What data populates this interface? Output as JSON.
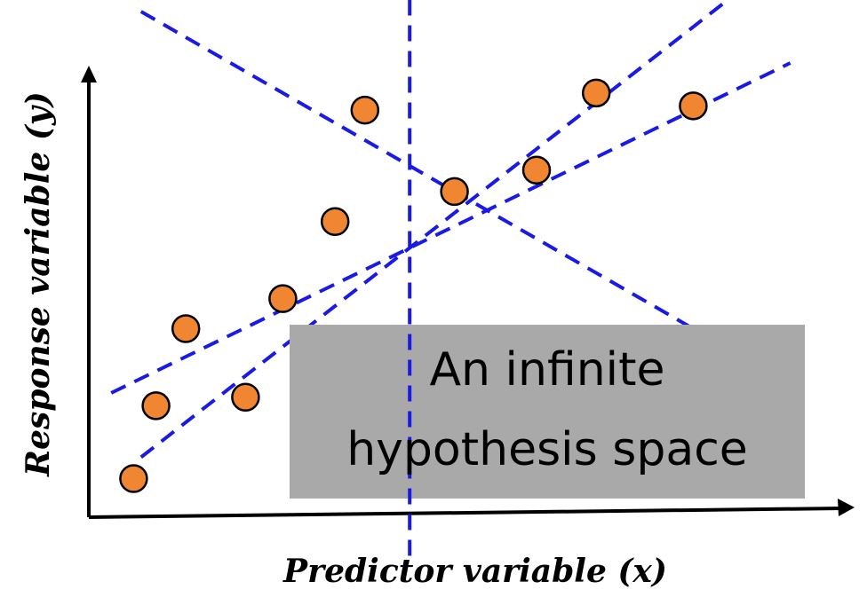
{
  "chart_data": {
    "type": "scatter",
    "title": "",
    "xlabel": "Predictor variable (x)",
    "ylabel": "Response variable (y)",
    "grid": false,
    "legend": "none",
    "xlim": [
      0,
      100
    ],
    "ylim": [
      0,
      100
    ],
    "points": [
      {
        "x": 6,
        "y": 9
      },
      {
        "x": 9,
        "y": 26
      },
      {
        "x": 13,
        "y": 44
      },
      {
        "x": 21,
        "y": 28
      },
      {
        "x": 26,
        "y": 51
      },
      {
        "x": 33,
        "y": 69
      },
      {
        "x": 37,
        "y": 95
      },
      {
        "x": 49,
        "y": 76
      },
      {
        "x": 60,
        "y": 81
      },
      {
        "x": 68,
        "y": 99
      },
      {
        "x": 81,
        "y": 96
      }
    ],
    "lines": [
      {
        "x1": 7,
        "y1": 14,
        "x2": 91,
        "y2": 128,
        "style": "dashed"
      },
      {
        "x1": 3,
        "y1": 29,
        "x2": 94,
        "y2": 106,
        "style": "dashed"
      },
      {
        "x1": 7,
        "y1": 118,
        "x2": 88,
        "y2": 37,
        "style": "dashed"
      },
      {
        "x1": 43,
        "y1": -9,
        "x2": 43,
        "y2": 132,
        "style": "dashed"
      }
    ],
    "annotation": {
      "lines": [
        "An infinite",
        "hypothesis space"
      ]
    }
  },
  "colors": {
    "point_fill": "#F08532",
    "point_stroke": "#000000",
    "line": "#1A1AE6",
    "axis": "#000000",
    "overlay_box": "#A9A9A9"
  }
}
